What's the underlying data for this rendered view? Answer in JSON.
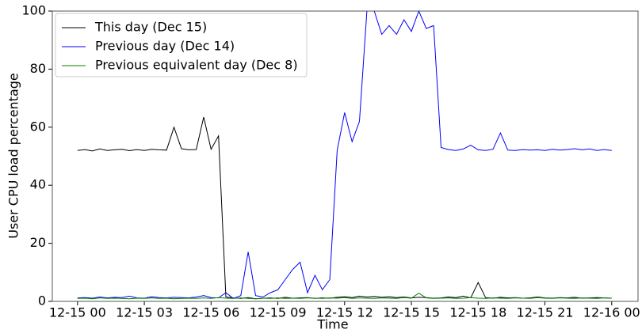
{
  "chart_data": {
    "type": "line",
    "xlabel": "Time",
    "ylabel": "User CPU load percentage",
    "x": [
      "12-15 00:00",
      "12-15 00:20",
      "12-15 00:40",
      "12-15 01:00",
      "12-15 01:20",
      "12-15 01:40",
      "12-15 02:00",
      "12-15 02:20",
      "12-15 02:40",
      "12-15 03:00",
      "12-15 03:20",
      "12-15 03:40",
      "12-15 04:00",
      "12-15 04:20",
      "12-15 04:40",
      "12-15 05:00",
      "12-15 05:20",
      "12-15 05:40",
      "12-15 06:00",
      "12-15 06:20",
      "12-15 06:40",
      "12-15 07:00",
      "12-15 07:20",
      "12-15 07:40",
      "12-15 08:00",
      "12-15 08:20",
      "12-15 08:40",
      "12-15 09:00",
      "12-15 09:20",
      "12-15 09:40",
      "12-15 10:00",
      "12-15 10:20",
      "12-15 10:40",
      "12-15 11:00",
      "12-15 11:20",
      "12-15 11:40",
      "12-15 12:00",
      "12-15 12:20",
      "12-15 12:40",
      "12-15 13:00",
      "12-15 13:20",
      "12-15 13:40",
      "12-15 14:00",
      "12-15 14:20",
      "12-15 14:40",
      "12-15 15:00",
      "12-15 15:20",
      "12-15 15:40",
      "12-15 16:00",
      "12-15 16:20",
      "12-15 16:40",
      "12-15 17:00",
      "12-15 17:20",
      "12-15 17:40",
      "12-15 18:00",
      "12-15 18:20",
      "12-15 18:40",
      "12-15 19:00",
      "12-15 19:20",
      "12-15 19:40",
      "12-15 20:00",
      "12-15 20:20",
      "12-15 20:40",
      "12-15 21:00",
      "12-15 21:20",
      "12-15 21:40",
      "12-15 22:00",
      "12-15 22:20",
      "12-15 22:40",
      "12-15 23:00",
      "12-15 23:20",
      "12-15 23:40",
      "12-16 00:00"
    ],
    "series": [
      {
        "name": "This day (Dec 15)",
        "color": "#000000",
        "values": [
          52,
          52.3,
          51.8,
          52.5,
          52,
          52.2,
          52.4,
          51.9,
          52.3,
          52,
          52.4,
          52.2,
          52.1,
          60,
          52.6,
          52.2,
          52.3,
          63.5,
          52.4,
          57,
          1.5,
          1.2,
          1,
          1.3,
          0.9,
          1.1,
          1.2,
          1,
          1.4,
          1.1,
          1.2,
          1.3,
          1,
          1.2,
          1.1,
          1.4,
          1.6,
          1.3,
          1.8,
          1.5,
          1.7,
          1.4,
          1.6,
          1.3,
          1.5,
          1.2,
          1.4,
          1.3,
          1.1,
          1.2,
          1.5,
          1.3,
          1.8,
          1.2,
          6.5,
          1.3,
          1.1,
          1.4,
          1.2,
          1.3,
          1.1,
          1.2,
          1.5,
          1.2,
          1.1,
          1.3,
          1.2,
          1.4,
          1.1,
          1.2,
          1.3,
          1.2,
          1.1
        ]
      },
      {
        "name": "Previous day (Dec 14)",
        "color": "#0000ff",
        "values": [
          1.2,
          1.3,
          1.1,
          1.5,
          1.2,
          1.4,
          1.3,
          1.8,
          1.2,
          1.1,
          1.6,
          1.3,
          1.2,
          1.4,
          1.3,
          1.2,
          1.5,
          2,
          1.3,
          1.2,
          3,
          1,
          2,
          17,
          2,
          1.5,
          3,
          4,
          7.5,
          11,
          13.5,
          3,
          9,
          4,
          7.5,
          52,
          65,
          55,
          62,
          100,
          100,
          92,
          95,
          92,
          97,
          93,
          100,
          94,
          95,
          53,
          52.3,
          52,
          52.5,
          53.8,
          52.2,
          52,
          52.4,
          58,
          52.1,
          52,
          52.3,
          52.1,
          52.2,
          52,
          52.4,
          52.1,
          52.3,
          52.6,
          52.2,
          52.5,
          52,
          52.3,
          52
        ]
      },
      {
        "name": "Previous equivalent day (Dec 8)",
        "color": "#008000",
        "values": [
          1,
          1.1,
          0.9,
          1.2,
          1,
          1.1,
          1,
          0.9,
          1.1,
          1,
          1.2,
          1,
          1.1,
          0.9,
          1,
          1.1,
          1,
          1.2,
          1,
          1.3,
          1.1,
          1,
          1.2,
          1,
          0.9,
          1.1,
          1,
          1.2,
          1,
          1.1,
          1,
          1.2,
          1.1,
          1,
          1.2,
          1.1,
          1.3,
          1,
          1.2,
          1.1,
          1,
          1.2,
          1.1,
          1,
          1.3,
          1.1,
          2.8,
          1.2,
          1,
          1.1,
          1.2,
          1,
          1.1,
          1.3,
          1.1,
          1,
          1.2,
          1.1,
          1,
          1.2,
          1.1,
          1,
          1.3,
          1.1,
          1,
          1.2,
          1.1,
          1,
          1.2,
          1.1,
          1,
          1.2,
          1.1
        ]
      }
    ],
    "xlim": [
      "12-14 22:52",
      "12-16 01:11"
    ],
    "xticks": [
      "12-15 00",
      "12-15 03",
      "12-15 06",
      "12-15 09",
      "12-15 12",
      "12-15 15",
      "12-15 18",
      "12-15 21",
      "12-16 00"
    ],
    "ylim": [
      0,
      100
    ],
    "yticks": [
      0,
      20,
      40,
      60,
      80,
      100
    ],
    "legend": "upper left",
    "grid": false
  }
}
